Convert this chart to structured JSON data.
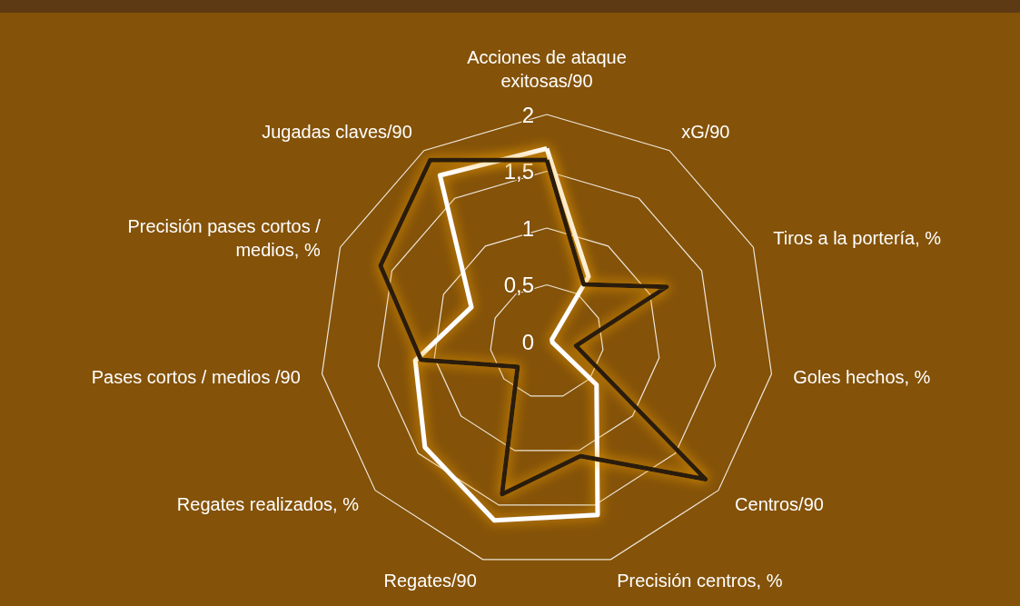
{
  "chart_data": {
    "type": "radar",
    "categories": [
      "Acciones de ataque\nexitosas/90",
      "xG/90",
      "Tiros a la portería, %",
      "Goles hechos, %",
      "Centros/90",
      "Precisión centros, %",
      "Regates/90",
      "Regates realizados, %",
      "Pases cortos / medios /90",
      "Precisión pases cortos /\nmedios, %",
      "Jugadas claves/90"
    ],
    "series": [
      {
        "color": "#ffffff",
        "values": [
          1.7,
          0.68,
          0.05,
          0.05,
          0.58,
          1.59,
          1.64,
          1.42,
          1.17,
          0.73,
          1.74
        ]
      },
      {
        "color": "#2a1d08",
        "values": [
          1.6,
          0.6,
          1.16,
          0.26,
          1.85,
          1.05,
          1.4,
          0.34,
          1.12,
          1.61,
          1.9
        ]
      }
    ],
    "ylim": [
      0,
      2
    ],
    "yticks": [
      0,
      {
        "value": 0.5,
        "label": "0,5"
      },
      1,
      {
        "value": 1.5,
        "label": "1,5"
      },
      2
    ],
    "marker": "none"
  }
}
